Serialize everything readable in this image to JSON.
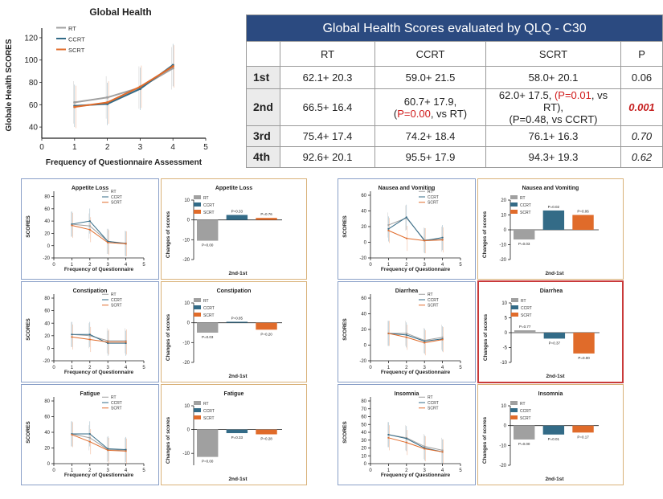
{
  "table": {
    "title": "Global Health Scores evaluated by QLQ - C30",
    "headers": [
      "",
      "RT",
      "CCRT",
      "SCRT",
      "P"
    ],
    "rows": [
      {
        "label": "1st",
        "rt": "62.1+ 20.3",
        "ccrt": "59.0+ 21.5",
        "scrt": "58.0+ 20.1",
        "p": "0.06"
      },
      {
        "label": "2nd",
        "rt": "66.5+ 16.4",
        "ccrt_line1": "60.7+ 17.9,",
        "ccrt_paren_open": "(",
        "ccrt_p": "P=0.00",
        "ccrt_tail": ", vs RT)",
        "scrt_a": "62.0+ 17.5,",
        "scrt_p_red": "(P=0.01",
        "scrt_b": ", vs RT),",
        "scrt_line2": "(P=0.48, vs CCRT)",
        "p": "0.001"
      },
      {
        "label": "3rd",
        "rt": "75.4+ 17.4",
        "ccrt": "74.2+ 18.4",
        "scrt": "76.1+ 16.3",
        "p": "0.70"
      },
      {
        "label": "4th",
        "rt": "92.6+ 20.1",
        "ccrt": "95.5+ 17.9",
        "scrt": "94.3+ 19.3",
        "p": "0.62"
      }
    ]
  },
  "colors": {
    "RT": "#a0a0a0",
    "CCRT": "#336b87",
    "SCRT": "#e06b2a",
    "table_header": "#2b4a80",
    "red": "#d01a1a"
  },
  "chart_data": [
    {
      "id": "global",
      "type": "line",
      "title": "Global Health",
      "xlabel": "Frequency of Questionnaire Assessment",
      "ylabel": "Globale Health SCORES",
      "x": [
        1,
        2,
        3,
        4
      ],
      "xlim": [
        0,
        5
      ],
      "ylim": [
        30,
        125
      ],
      "xticks": [
        "0",
        "1",
        "2",
        "3",
        "4",
        "5"
      ],
      "yticks": [
        "40",
        "60",
        "80",
        "100",
        "120"
      ],
      "ytick_values": [
        40,
        60,
        80,
        100,
        120
      ],
      "legend": [
        "RT",
        "CCRT",
        "SCRT"
      ],
      "series": [
        {
          "name": "RT",
          "values": [
            62.1,
            66.5,
            75.4,
            92.6
          ]
        },
        {
          "name": "CCRT",
          "values": [
            59.0,
            60.7,
            74.2,
            95.5
          ]
        },
        {
          "name": "SCRT",
          "values": [
            58.0,
            62.0,
            76.1,
            94.3
          ]
        }
      ]
    },
    {
      "id": "appetite-line",
      "type": "line",
      "title": "Appetite Loss",
      "xlabel": "Frequency of Questionnaire",
      "ylabel": "SCORES",
      "x": [
        1,
        2,
        3,
        4
      ],
      "xlim": [
        0,
        5
      ],
      "ylim": [
        -20,
        82
      ],
      "xticks": [
        "0",
        "1",
        "2",
        "3",
        "4",
        "5"
      ],
      "yticks": [
        "-20",
        "0",
        "20",
        "40",
        "60",
        "80"
      ],
      "ytick_values": [
        -20,
        0,
        20,
        40,
        60,
        80
      ],
      "legend": [
        "RT",
        "CCRT",
        "SCRT"
      ],
      "series": [
        {
          "name": "RT",
          "values": [
            35,
            32,
            7,
            4
          ]
        },
        {
          "name": "CCRT",
          "values": [
            35,
            40,
            7,
            3
          ]
        },
        {
          "name": "SCRT",
          "values": [
            33,
            26,
            5,
            3
          ]
        }
      ]
    },
    {
      "id": "appetite-bar",
      "type": "bar",
      "title": "Appetite Loss",
      "xlabel": "2nd-1st",
      "ylabel": "Changes of scores",
      "ylim": [
        -20,
        10
      ],
      "yticks": [
        "-20",
        "-10",
        "0",
        "10"
      ],
      "ytick_values": [
        -20,
        -10,
        0,
        10
      ],
      "legend": [
        "RT",
        "CCRT",
        "SCRT"
      ],
      "categories": [
        "RT",
        "CCRT",
        "SCRT"
      ],
      "values": [
        -10.5,
        2.5,
        1.0
      ],
      "labels": [
        "P=0.00",
        "P=0.33",
        "P=0.76"
      ]
    },
    {
      "id": "nausea-line",
      "type": "line",
      "title": "Nausea and Vomiting",
      "xlabel": "Frequency of Questionnaire",
      "ylabel": "SCORES",
      "x": [
        1,
        2,
        3,
        4
      ],
      "xlim": [
        0,
        5
      ],
      "ylim": [
        -20,
        60
      ],
      "xticks": [
        "0",
        "1",
        "2",
        "3",
        "4",
        "5"
      ],
      "yticks": [
        "-20",
        "0",
        "20",
        "40",
        "60"
      ],
      "ytick_values": [
        -20,
        0,
        20,
        40,
        60
      ],
      "legend": [
        "RT",
        "CCRT",
        "SCRT"
      ],
      "series": [
        {
          "name": "RT",
          "values": [
            22,
            31,
            3,
            4
          ]
        },
        {
          "name": "CCRT",
          "values": [
            17,
            32,
            2,
            6
          ]
        },
        {
          "name": "SCRT",
          "values": [
            15,
            5,
            2,
            3
          ]
        }
      ]
    },
    {
      "id": "nausea-bar",
      "type": "bar",
      "title": "Nausea and Vomiting",
      "xlabel": "2nd-1st",
      "ylabel": "Changes of scores",
      "ylim": [
        -20,
        20
      ],
      "yticks": [
        "-20",
        "-10",
        "0",
        "10",
        "20"
      ],
      "ytick_values": [
        -20,
        -10,
        0,
        10,
        20
      ],
      "legend": [
        "RT",
        "CCRT",
        "SCRT"
      ],
      "categories": [
        "RT",
        "CCRT",
        "SCRT"
      ],
      "values": [
        -6.5,
        13.0,
        10.0
      ],
      "labels": [
        "P=0.03",
        "P=0.02",
        "P=0.06"
      ]
    },
    {
      "id": "constipation-line",
      "type": "line",
      "title": "Constipation",
      "xlabel": "Frequency of Questionnaire",
      "ylabel": "SCORES",
      "x": [
        1,
        2,
        3,
        4
      ],
      "xlim": [
        0,
        5
      ],
      "ylim": [
        -20,
        80
      ],
      "xticks": [
        "0",
        "1",
        "2",
        "3",
        "4",
        "5"
      ],
      "yticks": [
        "-20",
        "0",
        "20",
        "40",
        "60",
        "80"
      ],
      "ytick_values": [
        -20,
        0,
        20,
        40,
        60,
        80
      ],
      "legend": [
        "RT",
        "CCRT",
        "SCRT"
      ],
      "series": [
        {
          "name": "RT",
          "values": [
            22,
            20,
            12,
            12
          ]
        },
        {
          "name": "CCRT",
          "values": [
            22,
            22,
            8,
            8
          ]
        },
        {
          "name": "SCRT",
          "values": [
            18,
            14,
            10,
            10
          ]
        }
      ]
    },
    {
      "id": "constipation-bar",
      "type": "bar",
      "title": "Constipation",
      "xlabel": "2nd-1st",
      "ylabel": "Changes of scores",
      "ylim": [
        -20,
        10
      ],
      "yticks": [
        "-20",
        "-10",
        "0",
        "10"
      ],
      "ytick_values": [
        -20,
        -10,
        0,
        10
      ],
      "legend": [
        "RT",
        "CCRT",
        "SCRT"
      ],
      "categories": [
        "RT",
        "CCRT",
        "SCRT"
      ],
      "values": [
        -5.0,
        0.5,
        -3.5
      ],
      "labels": [
        "P=0.03",
        "P=0.85",
        "P=0.20"
      ]
    },
    {
      "id": "diarrhea-line",
      "type": "line",
      "title": "Diarrhea",
      "xlabel": "Frequency of Questionnaire",
      "ylabel": "SCORES",
      "x": [
        1,
        2,
        3,
        4
      ],
      "xlim": [
        0,
        5
      ],
      "ylim": [
        -20,
        60
      ],
      "xticks": [
        "0",
        "1",
        "2",
        "3",
        "4",
        "5"
      ],
      "yticks": [
        "-20",
        "0",
        "20",
        "40",
        "60"
      ],
      "ytick_values": [
        -20,
        0,
        20,
        40,
        60
      ],
      "legend": [
        "RT",
        "CCRT",
        "SCRT"
      ],
      "series": [
        {
          "name": "RT",
          "values": [
            15,
            15,
            6,
            10
          ]
        },
        {
          "name": "CCRT",
          "values": [
            15,
            13,
            5,
            8
          ]
        },
        {
          "name": "SCRT",
          "values": [
            15,
            10,
            3,
            7
          ]
        }
      ]
    },
    {
      "id": "diarrhea-bar",
      "type": "bar",
      "title": "Diarrhea",
      "xlabel": "2nd-1st",
      "ylabel": "Changes of scores",
      "ylim": [
        -10,
        10
      ],
      "yticks": [
        "-10",
        "-5",
        "0",
        "5",
        "10"
      ],
      "ytick_values": [
        -10,
        -5,
        0,
        5,
        10
      ],
      "legend": [
        "RT",
        "CCRT",
        "SCRT"
      ],
      "categories": [
        "RT",
        "CCRT",
        "SCRT"
      ],
      "values": [
        0.8,
        -2.0,
        -7.0
      ],
      "labels": [
        "P=0.77",
        "P=0.37",
        "P=0.00"
      ]
    },
    {
      "id": "fatigue-line",
      "type": "line",
      "title": "Fatigue",
      "xlabel": "Frequency of Questionnaire",
      "ylabel": "SCORES",
      "x": [
        1,
        2,
        3,
        4
      ],
      "xlim": [
        0,
        5
      ],
      "ylim": [
        0,
        80
      ],
      "xticks": [
        "0",
        "1",
        "2",
        "3",
        "4",
        "5"
      ],
      "yticks": [
        "0",
        "20",
        "40",
        "60",
        "80"
      ],
      "ytick_values": [
        0,
        20,
        40,
        60,
        80
      ],
      "legend": [
        "RT",
        "CCRT",
        "SCRT"
      ],
      "series": [
        {
          "name": "RT",
          "values": [
            38,
            33,
            18,
            17
          ]
        },
        {
          "name": "CCRT",
          "values": [
            38,
            38,
            19,
            18
          ]
        },
        {
          "name": "SCRT",
          "values": [
            37,
            28,
            17,
            16
          ]
        }
      ]
    },
    {
      "id": "fatigue-bar",
      "type": "bar",
      "title": "Fatigue",
      "xlabel": "2nd-1st",
      "ylabel": "Changes of scores",
      "ylim": [
        -15,
        10
      ],
      "yticks": [
        "-10",
        "0",
        "10"
      ],
      "ytick_values": [
        -10,
        0,
        10
      ],
      "legend": [
        "RT",
        "CCRT",
        "SCRT"
      ],
      "categories": [
        "RT",
        "CCRT",
        "SCRT"
      ],
      "values": [
        -11.5,
        -1.5,
        -2.0
      ],
      "labels": [
        "P=0.00",
        "P=0.33",
        "P=0.28"
      ]
    },
    {
      "id": "insomnia-line",
      "type": "line",
      "title": "Insomnia",
      "xlabel": "Frequency of Questionnaire",
      "ylabel": "SCORES",
      "x": [
        1,
        2,
        3,
        4
      ],
      "xlim": [
        0,
        5
      ],
      "ylim": [
        0,
        80
      ],
      "xticks": [
        "0",
        "1",
        "2",
        "3",
        "4",
        "5"
      ],
      "yticks": [
        "0",
        "10",
        "20",
        "30",
        "40",
        "50",
        "60",
        "70",
        "80"
      ],
      "ytick_values": [
        0,
        10,
        20,
        30,
        40,
        50,
        60,
        70,
        80
      ],
      "legend": [
        "RT",
        "CCRT",
        "SCRT"
      ],
      "series": [
        {
          "name": "RT",
          "values": [
            37,
            33,
            22,
            17
          ]
        },
        {
          "name": "CCRT",
          "values": [
            37,
            32,
            20,
            15
          ]
        },
        {
          "name": "SCRT",
          "values": [
            33,
            27,
            19,
            15
          ]
        }
      ]
    },
    {
      "id": "insomnia-bar",
      "type": "bar",
      "title": "Insomnia",
      "xlabel": "2nd-1st",
      "ylabel": "Changes of scores",
      "ylim": [
        -20,
        10
      ],
      "yticks": [
        "-20",
        "-10",
        "0",
        "10"
      ],
      "ytick_values": [
        -20,
        -10,
        0,
        10
      ],
      "legend": [
        "RT",
        "CCRT",
        "SCRT"
      ],
      "categories": [
        "RT",
        "CCRT",
        "SCRT"
      ],
      "values": [
        -7.0,
        -4.5,
        -3.5
      ],
      "labels": [
        "P=0.00",
        "P=0.01",
        "P=0.17"
      ]
    }
  ]
}
